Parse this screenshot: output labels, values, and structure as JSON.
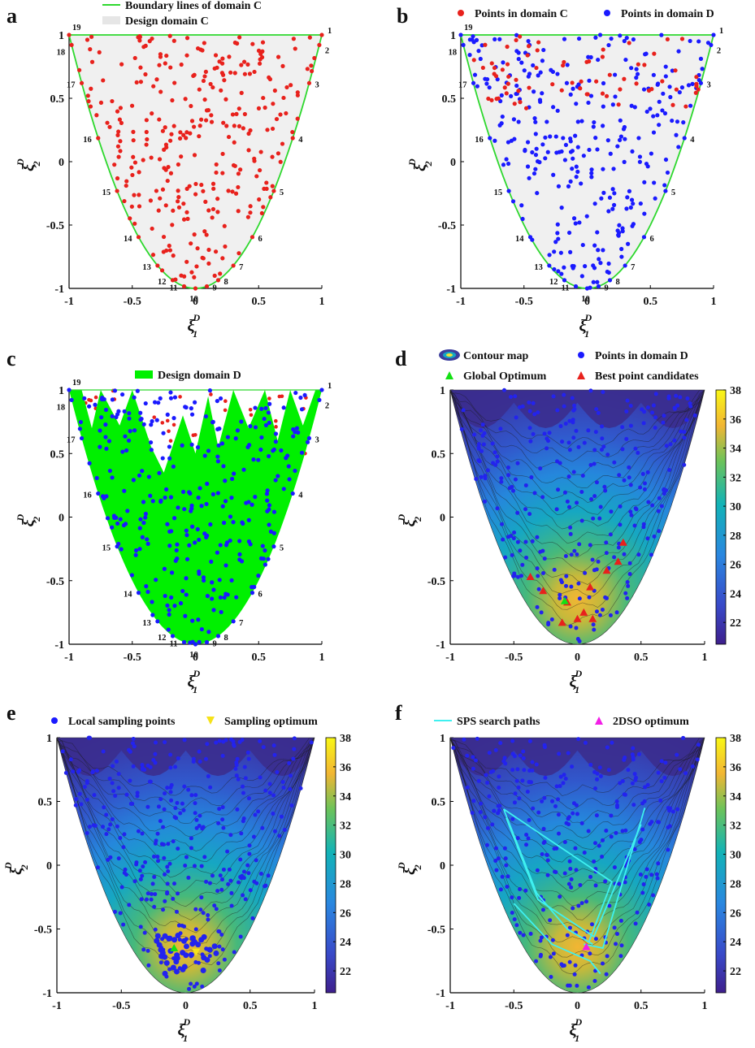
{
  "chart_data": [
    {
      "panel": "a",
      "type": "scatter",
      "legend": [
        "Boundary lines of domain C",
        "Design domain C"
      ],
      "series": [
        {
          "name": "Points in domain C",
          "color": "#e8211c",
          "count": 300
        }
      ],
      "xlabel": "ξ1 D",
      "ylabel": "ξ2 D",
      "xlim": [
        -1,
        1
      ],
      "ylim": [
        -1,
        1
      ],
      "xticks": [
        "-1",
        "-0.5",
        "0",
        "0.5",
        "1"
      ],
      "yticks": [
        "-1",
        "-0.5",
        "0",
        "0.5",
        "1"
      ],
      "boundary": "xi2 = 2*xi1^2 - 1",
      "vertex_labels": [
        "1",
        "2",
        "3",
        "4",
        "5",
        "6",
        "7",
        "8",
        "9",
        "10",
        "11",
        "12",
        "13",
        "14",
        "15",
        "16",
        "17",
        "18",
        "19"
      ]
    },
    {
      "panel": "b",
      "type": "scatter",
      "legend": [
        "Points in domain C",
        "Points in domain D"
      ],
      "series": [
        {
          "name": "Points in domain C",
          "color": "#e8211c",
          "count": 70
        },
        {
          "name": "Points in domain D",
          "color": "#1a1aff",
          "count": 300
        }
      ],
      "xlim": [
        -1,
        1
      ],
      "ylim": [
        -1,
        1
      ],
      "xticks": [
        "-1",
        "-0.5",
        "0",
        "0.5",
        "1"
      ],
      "yticks": [
        "-1",
        "-0.5",
        "0",
        "0.5",
        "1"
      ]
    },
    {
      "panel": "c",
      "type": "scatter",
      "legend": [
        "Design domain D"
      ],
      "series": [
        {
          "name": "Design domain D",
          "color": "#00f000"
        },
        {
          "name": "Points in domain D",
          "color": "#1a1aff",
          "count": 300
        },
        {
          "name": "Points in domain C",
          "color": "#e8211c",
          "count": 60
        }
      ],
      "xlim": [
        -1,
        1
      ],
      "ylim": [
        -1,
        1
      ],
      "xticks": [
        "-1",
        "-0.5",
        "0",
        "0.5",
        "1"
      ],
      "yticks": [
        "-1",
        "-0.5",
        "0",
        "0.5",
        "1"
      ]
    },
    {
      "panel": "d",
      "type": "heatmap",
      "legend": [
        "Contour map",
        "Points in domain D",
        "Global Optimum",
        "Best point candidates"
      ],
      "colorbar": {
        "min": 20.5,
        "max": 38,
        "ticks": [
          "22",
          "24",
          "26",
          "28",
          "30",
          "32",
          "34",
          "36",
          "38"
        ]
      },
      "global_optimum": [
        [
          -0.1,
          -0.66
        ]
      ],
      "best_candidates": [
        [
          -0.37,
          -0.47
        ],
        [
          -0.27,
          -0.58
        ],
        [
          -0.08,
          -0.67
        ],
        [
          0.05,
          -0.75
        ],
        [
          0.1,
          -0.55
        ],
        [
          0.23,
          -0.42
        ],
        [
          0.32,
          -0.35
        ],
        [
          0.36,
          -0.2
        ],
        [
          -0.12,
          -0.83
        ],
        [
          0.12,
          -0.8
        ],
        [
          0.0,
          -0.8
        ]
      ],
      "xlim": [
        -1,
        1
      ],
      "ylim": [
        -1,
        1
      ],
      "xticks": [
        "-1",
        "-0.5",
        "0",
        "0.5",
        "1"
      ],
      "yticks": [
        "-1",
        "-0.5",
        "0",
        "0.5",
        "1"
      ]
    },
    {
      "panel": "e",
      "type": "heatmap",
      "legend": [
        "Local sampling points",
        "Sampling optimum"
      ],
      "colorbar": {
        "min": 20.5,
        "max": 38,
        "ticks": [
          "22",
          "24",
          "26",
          "28",
          "30",
          "32",
          "34",
          "36",
          "38"
        ]
      },
      "sampling_optimum": [
        [
          0.08,
          -0.68
        ]
      ],
      "global_optimum": [
        [
          -0.09,
          -0.65
        ]
      ],
      "xlim": [
        -1,
        1
      ],
      "ylim": [
        -1,
        1
      ],
      "xticks": [
        "-1",
        "-0.5",
        "0",
        "0.5",
        "1"
      ],
      "yticks": [
        "-1",
        "-0.5",
        "0",
        "0.5",
        "1"
      ]
    },
    {
      "panel": "f",
      "type": "heatmap",
      "legend": [
        "SPS search paths",
        "2DSO  optimum"
      ],
      "colorbar": {
        "min": 20.5,
        "max": 38,
        "ticks": [
          "22",
          "24",
          "26",
          "28",
          "30",
          "32",
          "34",
          "36",
          "38"
        ]
      },
      "optimum_2dso": [
        [
          0.07,
          -0.64
        ]
      ],
      "search_paths": [
        [
          [
            -0.58,
            0.44
          ],
          [
            -0.32,
            -0.22
          ],
          [
            -0.08,
            -0.5
          ],
          [
            0.12,
            -0.62
          ]
        ],
        [
          [
            -0.58,
            0.44
          ],
          [
            0.27,
            -0.13
          ],
          [
            0.09,
            -0.6
          ]
        ],
        [
          [
            0.53,
            0.45
          ],
          [
            0.2,
            -0.65
          ],
          [
            0.05,
            -0.62
          ]
        ],
        [
          [
            0.5,
            0.32
          ],
          [
            0.13,
            -0.56
          ],
          [
            -0.31,
            -0.27
          ],
          [
            -0.56,
            0.37
          ]
        ],
        [
          [
            -0.5,
            -0.3
          ],
          [
            -0.2,
            -0.62
          ],
          [
            0.1,
            -0.75
          ],
          [
            0.18,
            -0.85
          ]
        ]
      ],
      "xlim": [
        -1,
        1
      ],
      "ylim": [
        -1,
        1
      ],
      "xticks": [
        "-1",
        "-0.5",
        "0",
        "0.5",
        "1"
      ],
      "yticks": [
        "-1",
        "-0.5",
        "0",
        "0.5",
        "1"
      ]
    }
  ]
}
